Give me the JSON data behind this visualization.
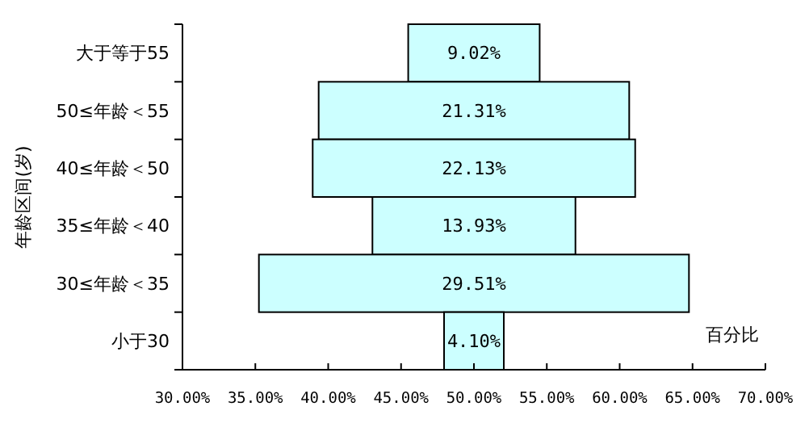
{
  "chart_data": {
    "type": "bar",
    "orientation": "horizontal",
    "ylabel": "年龄区间(岁)",
    "xlabel": "百分比",
    "categories": [
      "大于等于55",
      "50≤年龄＜55",
      "40≤年龄＜50",
      "35≤年龄＜40",
      "30≤年龄＜35",
      "小于30"
    ],
    "values": [
      9.02,
      21.31,
      22.13,
      13.93,
      29.51,
      4.1
    ],
    "base": [
      45.49,
      39.345,
      38.935,
      43.035,
      35.245,
      47.95
    ],
    "value_labels": [
      "9.02%",
      "21.31%",
      "22.13%",
      "13.93%",
      "29.51%",
      "4.10%"
    ],
    "color": "#ccffff",
    "xlim": [
      30,
      70
    ],
    "xticks": [
      {
        "value": 30,
        "label": "30.00%"
      },
      {
        "value": 35,
        "label": "35.00%"
      },
      {
        "value": 40,
        "label": "40.00%"
      },
      {
        "value": 45,
        "label": "45.00%"
      },
      {
        "value": 50,
        "label": "50.00%"
      },
      {
        "value": 55,
        "label": "55.00%"
      },
      {
        "value": 60,
        "label": "60.00%"
      },
      {
        "value": 65,
        "label": "65.00%"
      },
      {
        "value": 70,
        "label": "70.00%"
      }
    ],
    "grid": false
  }
}
